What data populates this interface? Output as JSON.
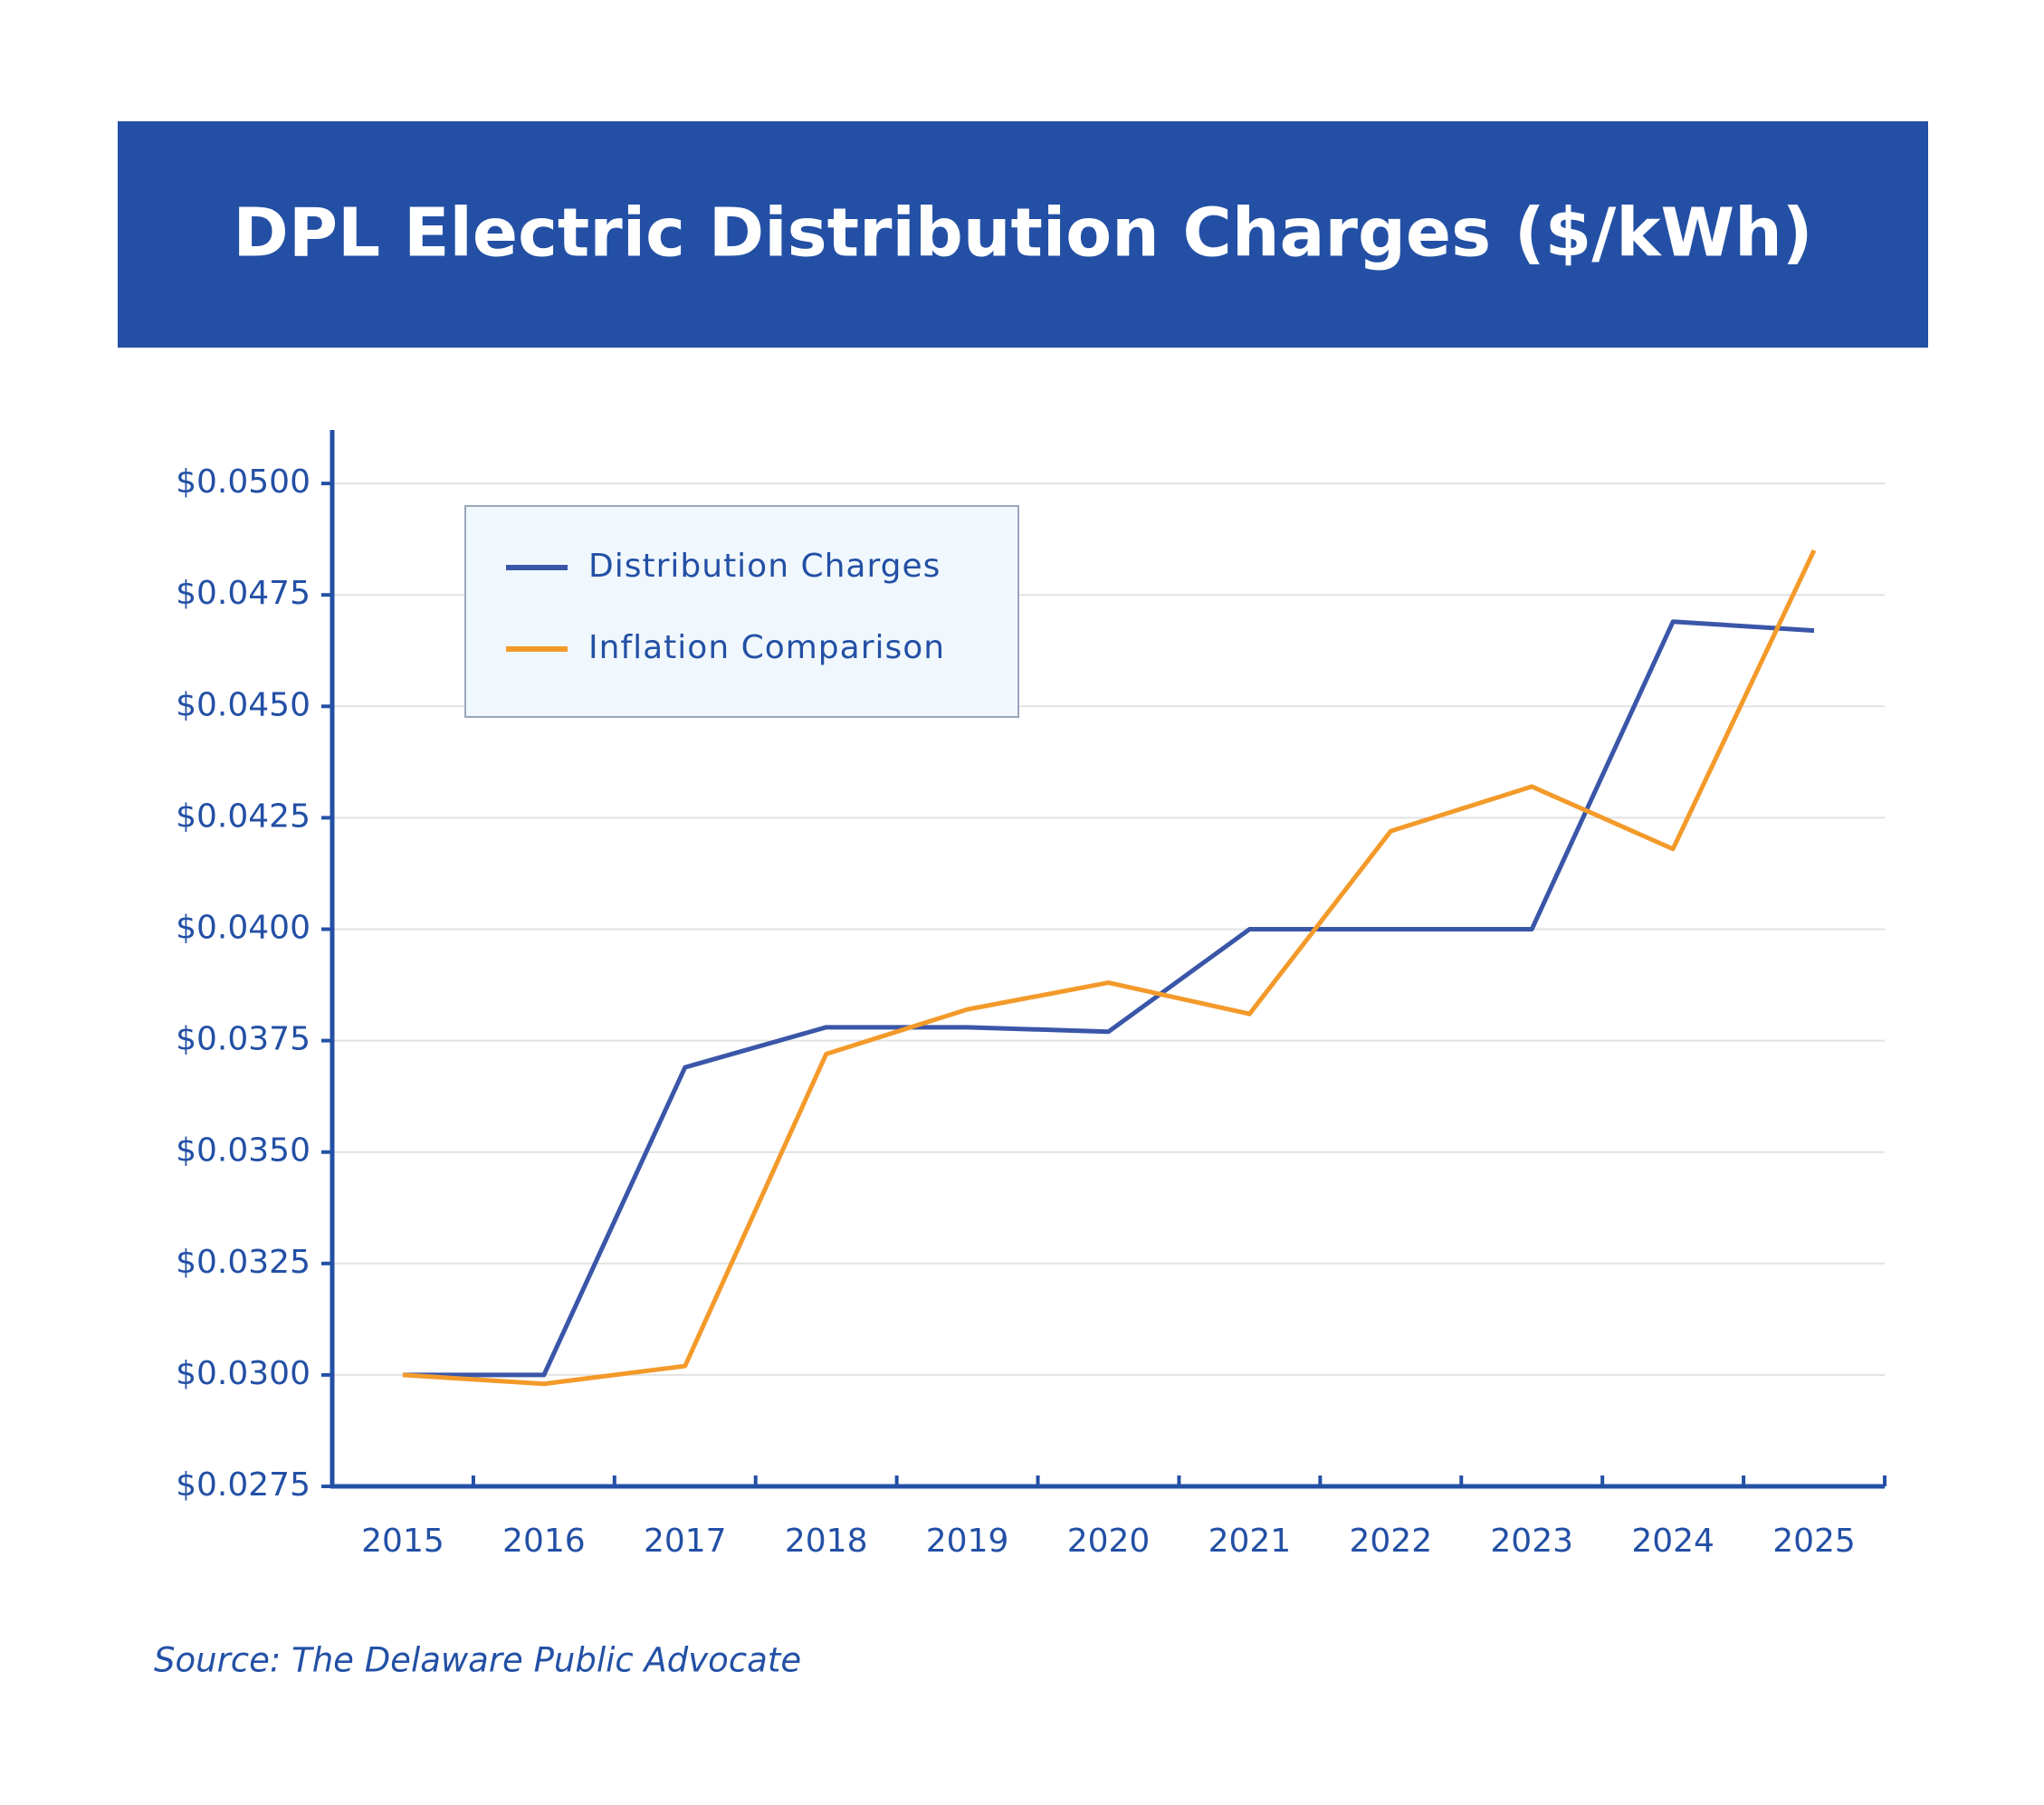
{
  "chart_data": {
    "type": "line",
    "title": "DPL Electric Distribution Charges ($/kWh)",
    "source": "Source: The Delaware Public Advocate",
    "categories": [
      "2015",
      "2016",
      "2017",
      "2018",
      "2019",
      "2020",
      "2021",
      "2022",
      "2023",
      "2024",
      "2025"
    ],
    "series": [
      {
        "name": "Distribution Charges",
        "color": "#3a56a8",
        "values": [
          0.03,
          0.03,
          0.0369,
          0.0378,
          0.0378,
          0.0377,
          0.04,
          0.04,
          0.04,
          0.0469,
          0.0467
        ]
      },
      {
        "name": "Inflation Comparison",
        "color": "#f39a2a",
        "values": [
          0.03,
          0.0298,
          0.0302,
          0.0372,
          0.0382,
          0.0388,
          0.0381,
          0.0422,
          0.0432,
          0.0418,
          0.0485
        ]
      }
    ],
    "ylim": [
      0.0275,
      0.0512
    ],
    "yticks": [
      {
        "value": 0.0275,
        "label": "$0.0275"
      },
      {
        "value": 0.03,
        "label": "$0.0300"
      },
      {
        "value": 0.0325,
        "label": "$0.0325"
      },
      {
        "value": 0.035,
        "label": "$0.0350"
      },
      {
        "value": 0.0375,
        "label": "$0.0375"
      },
      {
        "value": 0.04,
        "label": "$0.0400"
      },
      {
        "value": 0.0425,
        "label": "$0.0425"
      },
      {
        "value": 0.045,
        "label": "$0.0450"
      },
      {
        "value": 0.0475,
        "label": "$0.0475"
      },
      {
        "value": 0.05,
        "label": "$0.0500"
      }
    ],
    "grid": true,
    "legend": "upper left"
  }
}
